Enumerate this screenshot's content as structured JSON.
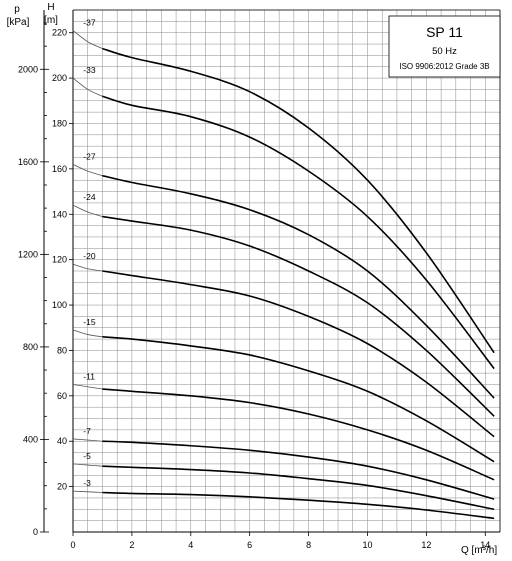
{
  "chart_data": {
    "type": "line",
    "title": "SP 11",
    "frequency": "50 Hz",
    "standard": "ISO 9906:2012 Grade 3B",
    "xlabel": "Q [m³/h]",
    "ylabel_head": "H",
    "ylabel_head_unit": "[m]",
    "ylabel_pressure": "p",
    "ylabel_pressure_unit": "[kPa]",
    "xlim": [
      0,
      14.5
    ],
    "ylim_head": [
      0,
      225
    ],
    "ylim_pressure": [
      0,
      2200
    ],
    "grid": true,
    "legend_position": "top-right",
    "x_ticks": [
      "0",
      "2",
      "4",
      "6",
      "8",
      "10",
      "12",
      "14"
    ],
    "head_ticks": [
      "20",
      "40",
      "60",
      "80",
      "100",
      "120",
      "140",
      "160",
      "180",
      "200",
      "220"
    ],
    "pressure_ticks": [
      "0",
      "400",
      "800",
      "1200",
      "1600",
      "2000"
    ],
    "series": [
      {
        "name": "-37",
        "x": [
          0,
          0.5,
          1,
          2,
          4,
          6,
          8,
          10,
          12,
          14.3
        ],
        "y": [
          221,
          216,
          213,
          209,
          203,
          194,
          178,
          155,
          123,
          79
        ]
      },
      {
        "name": "-33",
        "x": [
          0,
          0.5,
          1,
          2,
          4,
          6,
          8,
          10,
          12,
          14.3
        ],
        "y": [
          200,
          195,
          192,
          188,
          183,
          174,
          159,
          139,
          111,
          72
        ]
      },
      {
        "name": "-27",
        "x": [
          0,
          0.5,
          1,
          2,
          4,
          6,
          8,
          10,
          12,
          14.3
        ],
        "y": [
          162,
          159,
          157,
          154,
          149,
          142,
          131,
          115,
          91,
          59
        ]
      },
      {
        "name": "-24",
        "x": [
          0,
          0.5,
          1,
          2,
          4,
          6,
          8,
          10,
          12,
          14.3
        ],
        "y": [
          144,
          141,
          139,
          137,
          133,
          126,
          115,
          101,
          80,
          51
        ]
      },
      {
        "name": "-20",
        "x": [
          0,
          0.5,
          1,
          2,
          4,
          6,
          8,
          10,
          12,
          14.3
        ],
        "y": [
          118,
          116,
          115,
          113,
          109,
          104,
          95,
          83,
          66,
          42
        ]
      },
      {
        "name": "-15",
        "x": [
          0,
          0.5,
          1,
          2,
          4,
          6,
          8,
          10,
          12,
          14.3
        ],
        "y": [
          89,
          87,
          86,
          85,
          82,
          78,
          71,
          62,
          49,
          31
        ]
      },
      {
        "name": "-11",
        "x": [
          0,
          0.5,
          1,
          2,
          4,
          6,
          8,
          10,
          12,
          14.3
        ],
        "y": [
          65,
          64,
          63,
          62,
          60,
          57,
          52,
          45,
          36,
          23
        ]
      },
      {
        "name": "-7",
        "x": [
          0,
          0.5,
          1,
          2,
          4,
          6,
          8,
          10,
          12,
          14.3
        ],
        "y": [
          41,
          40.5,
          40,
          39.5,
          38,
          36,
          33,
          29,
          23,
          14.5
        ]
      },
      {
        "name": "-5",
        "x": [
          0,
          0.5,
          1,
          2,
          4,
          6,
          8,
          10,
          12,
          14.3
        ],
        "y": [
          30,
          29.5,
          29,
          28.5,
          27.5,
          26,
          23.5,
          20.5,
          16,
          10
        ]
      },
      {
        "name": "-3",
        "x": [
          0,
          0.5,
          1,
          2,
          4,
          6,
          8,
          10,
          12,
          14.3
        ],
        "y": [
          18,
          17.7,
          17.4,
          17,
          16.5,
          15.5,
          14,
          12.2,
          9.7,
          6
        ]
      }
    ]
  }
}
